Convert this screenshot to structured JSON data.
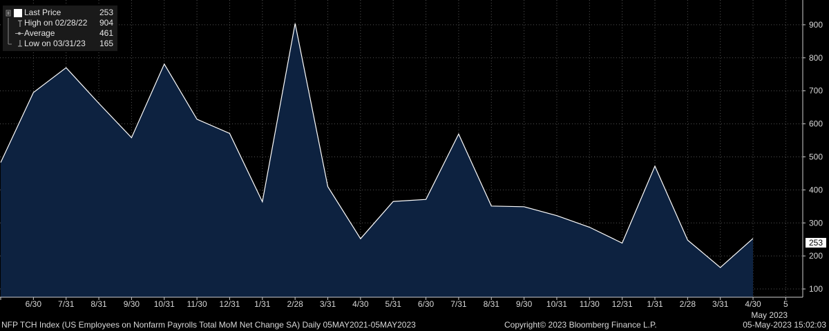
{
  "chart_data": {
    "type": "area",
    "x": [
      "5/31",
      "6/30",
      "7/31",
      "8/31",
      "9/30",
      "10/31",
      "11/30",
      "12/31",
      "1/31",
      "2/28",
      "3/31",
      "4/30",
      "5/31",
      "6/30",
      "7/31",
      "8/31",
      "9/30",
      "10/31",
      "11/30",
      "12/31",
      "1/31",
      "2/28",
      "3/31",
      "4/30"
    ],
    "values": [
      483,
      695,
      770,
      662,
      558,
      781,
      614,
      571,
      364,
      904,
      410,
      252,
      365,
      371,
      569,
      351,
      349,
      322,
      287,
      239,
      472,
      248,
      165,
      253
    ],
    "x_ticks": [
      "6/30",
      "7/31",
      "8/31",
      "9/30",
      "10/31",
      "11/30",
      "12/31",
      "1/31",
      "2/28",
      "3/31",
      "4/30",
      "5/31",
      "6/30",
      "7/31",
      "8/31",
      "9/30",
      "10/31",
      "11/30",
      "12/31",
      "1/31",
      "2/28",
      "3/31",
      "4/30",
      "5"
    ],
    "x_year_label": "May 2023",
    "y_ticks": [
      100,
      200,
      300,
      400,
      500,
      600,
      700,
      800,
      900
    ],
    "ylim": [
      75,
      975
    ],
    "last_price_label": "253",
    "colors": {
      "fill": "#0d2240",
      "line": "#ffffff",
      "background": "#000000",
      "grid": "#555555"
    },
    "grid": true,
    "legend_position": "top-left"
  },
  "legend": [
    {
      "label": "Last Price",
      "value": "253",
      "icon": "filled-square-icon"
    },
    {
      "label": "High on 02/28/22",
      "value": "904",
      "icon": "high-marker-icon"
    },
    {
      "label": "Average",
      "value": "461",
      "icon": "average-line-icon"
    },
    {
      "label": "Low on 03/31/23",
      "value": "165",
      "icon": "low-marker-icon"
    }
  ],
  "footer": {
    "description": "NFP TCH Index (US Employees on Nonfarm Payrolls Total MoM Net Change SA)  Daily 05MAY2021-05MAY2023",
    "copyright": "Copyright© 2023 Bloomberg Finance L.P.",
    "timestamp": "05-May-2023 15:02:03"
  }
}
